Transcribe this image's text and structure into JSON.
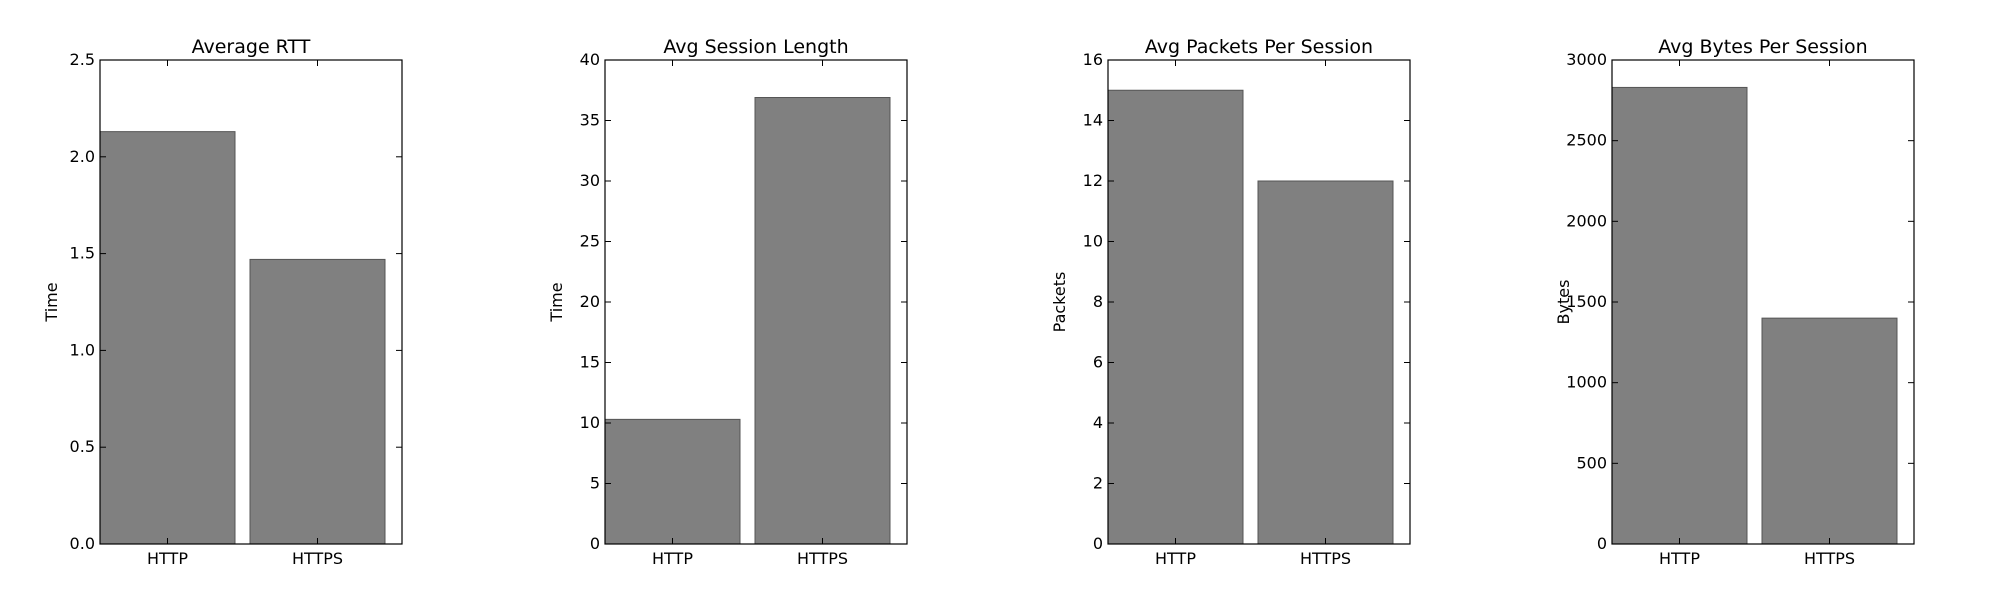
{
  "chart_data": [
    {
      "type": "bar",
      "title": "Average RTT",
      "ylabel": "Time",
      "xlabel": "",
      "categories": [
        "HTTP",
        "HTTPS"
      ],
      "values": [
        2.13,
        1.47
      ],
      "ylim": [
        0,
        2.5
      ],
      "yticks": [
        "0.0",
        "0.5",
        "1.0",
        "1.5",
        "2.0",
        "2.5"
      ],
      "bar_color": "#808080",
      "grid": false
    },
    {
      "type": "bar",
      "title": "Avg Session Length",
      "ylabel": "Time",
      "xlabel": "",
      "categories": [
        "HTTP",
        "HTTPS"
      ],
      "values": [
        10.3,
        36.9
      ],
      "ylim": [
        0,
        40
      ],
      "yticks": [
        "0",
        "5",
        "10",
        "15",
        "20",
        "25",
        "30",
        "35",
        "40"
      ],
      "bar_color": "#808080",
      "grid": false
    },
    {
      "type": "bar",
      "title": "Avg Packets Per Session",
      "ylabel": "Packets",
      "xlabel": "",
      "categories": [
        "HTTP",
        "HTTPS"
      ],
      "values": [
        15.0,
        12.0
      ],
      "ylim": [
        0,
        16
      ],
      "yticks": [
        "0",
        "2",
        "4",
        "6",
        "8",
        "10",
        "12",
        "14",
        "16"
      ],
      "bar_color": "#808080",
      "grid": false
    },
    {
      "type": "bar",
      "title": "Avg Bytes Per Session",
      "ylabel": "Bytes",
      "xlabel": "",
      "categories": [
        "HTTP",
        "HTTPS"
      ],
      "values": [
        2830,
        1400
      ],
      "ylim": [
        0,
        3000
      ],
      "yticks": [
        "0",
        "500",
        "1000",
        "1500",
        "2000",
        "2500",
        "3000"
      ],
      "bar_color": "#808080",
      "grid": false
    }
  ]
}
